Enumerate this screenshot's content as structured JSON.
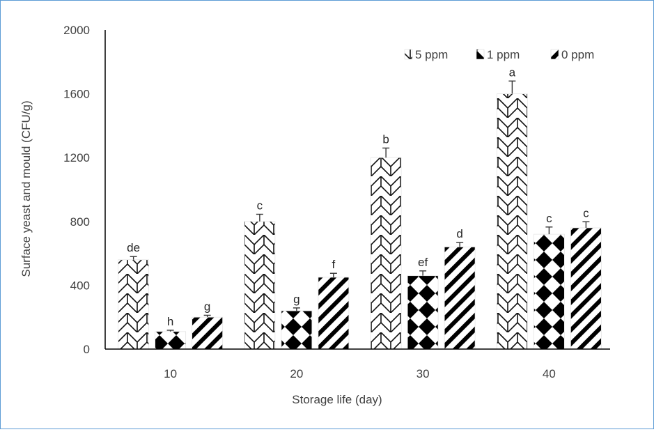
{
  "chart_data": {
    "type": "bar",
    "title": "",
    "xlabel": "Storage life (day)",
    "ylabel": "Surface yeast and mould (CFU/g)",
    "ylim": [
      0,
      2000
    ],
    "yticks": [
      "0",
      "400",
      "800",
      "1200",
      "1600",
      "2000"
    ],
    "categories": [
      "10",
      "20",
      "30",
      "40"
    ],
    "legend_position": "top-right",
    "grid": false,
    "series": [
      {
        "name": "5 ppm",
        "pattern": "zigzag-brick",
        "values": [
          560,
          800,
          1200,
          1600
        ],
        "errors": [
          20,
          45,
          60,
          80
        ],
        "significance": [
          "de",
          "c",
          "b",
          "a"
        ]
      },
      {
        "name": "1 ppm",
        "pattern": "checker-diamond",
        "values": [
          110,
          240,
          460,
          720
        ],
        "errors": [
          8,
          18,
          30,
          45
        ],
        "significance": [
          "h",
          "g",
          "ef",
          "c"
        ]
      },
      {
        "name": "0 ppm",
        "pattern": "diagonal-stripes",
        "values": [
          200,
          450,
          640,
          760
        ],
        "errors": [
          12,
          25,
          28,
          38
        ],
        "significance": [
          "g",
          "f",
          "d",
          "c"
        ]
      }
    ],
    "colors": {
      "axis": "#000000",
      "text": "#404040",
      "fill": "#000000"
    }
  }
}
